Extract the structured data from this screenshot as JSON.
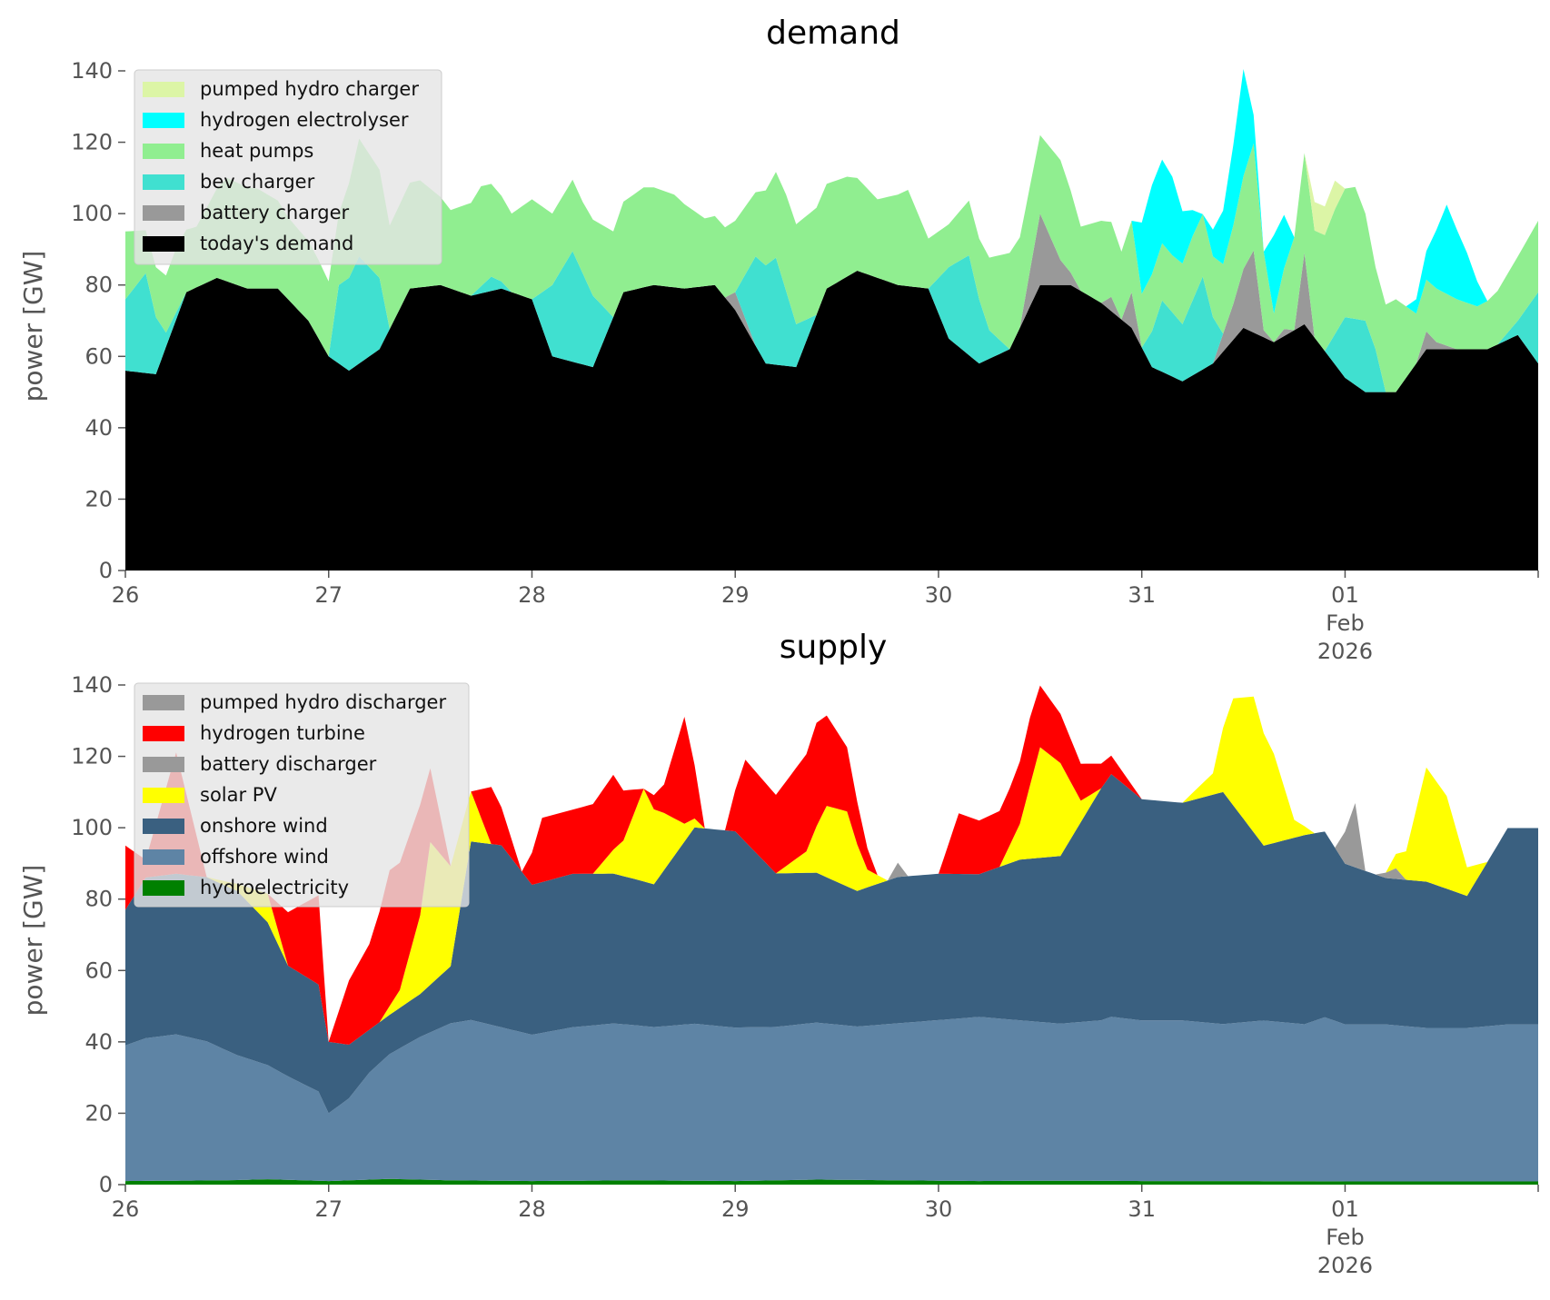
{
  "colors": {
    "pumped_hydro": "#dcf5a6",
    "hydrogen_electrolyser": "#00ffff",
    "heat_pumps": "#90ee90",
    "bev_charger": "#40e0d0",
    "battery": "#999999",
    "todays_demand": "#000000",
    "hydrogen_turbine": "#ff0000",
    "solar_pv": "#ffff00",
    "onshore_wind": "#3a6080",
    "offshore_wind": "#5e84a5",
    "hydroelectricity": "#008000"
  },
  "chart_data": [
    {
      "type": "area",
      "stacked": true,
      "title": "demand",
      "ylabel": "power [GW]",
      "ylim": [
        0,
        140
      ],
      "yticks": [
        "0",
        "20",
        "40",
        "60",
        "80",
        "100",
        "120",
        "140"
      ],
      "x_unit": "days from 2026-01-26 00:00",
      "xlim": [
        0,
        6.95
      ],
      "xticks": [
        {
          "x": 0,
          "lines": [
            "26"
          ]
        },
        {
          "x": 1,
          "lines": [
            "27"
          ]
        },
        {
          "x": 2,
          "lines": [
            "28"
          ]
        },
        {
          "x": 3,
          "lines": [
            "29"
          ]
        },
        {
          "x": 4,
          "lines": [
            "30"
          ]
        },
        {
          "x": 5,
          "lines": [
            "31"
          ]
        },
        {
          "x": 6,
          "lines": [
            "01",
            "Feb",
            "2026"
          ]
        }
      ],
      "legend": {
        "placement": "upper-left",
        "entries": [
          "pumped hydro charger",
          "hydrogen electrolyser",
          "heat pumps",
          "bev charger",
          "battery charger",
          "today's demand"
        ]
      },
      "series": [
        {
          "name": "today's demand",
          "color_key": "todays_demand",
          "x": [
            0,
            0.15,
            0.3,
            0.45,
            0.6,
            0.75,
            0.9,
            1.0,
            1.1,
            1.25,
            1.4,
            1.55,
            1.7,
            1.85,
            2.0,
            2.1,
            2.3,
            2.45,
            2.6,
            2.75,
            2.9,
            3.0,
            3.15,
            3.3,
            3.45,
            3.6,
            3.8,
            3.95,
            4.05,
            4.2,
            4.35,
            4.5,
            4.65,
            4.8,
            4.95,
            5.05,
            5.2,
            5.35,
            5.5,
            5.65,
            5.8,
            6.0,
            6.1,
            6.25,
            6.4,
            6.55,
            6.7,
            6.85,
            6.95
          ],
          "y": [
            56,
            55,
            78,
            82,
            79,
            79,
            70,
            60,
            56,
            62,
            79,
            80,
            77,
            79,
            76,
            60,
            57,
            78,
            80,
            79,
            80,
            73,
            58,
            57,
            79,
            84,
            80,
            79,
            65,
            58,
            62,
            80,
            80,
            75,
            68,
            57,
            53,
            58,
            68,
            64,
            69,
            54,
            50,
            50,
            62,
            62,
            62,
            66,
            58
          ]
        },
        {
          "name": "battery charger",
          "color_key": "battery",
          "x": [
            0,
            0.5,
            1.0,
            1.5,
            2.0,
            2.5,
            2.9,
            2.95,
            3.0,
            3.1,
            3.5,
            4.0,
            4.35,
            4.4,
            4.5,
            4.6,
            4.7,
            4.8,
            4.85,
            4.9,
            4.95,
            5.0,
            5.05,
            5.2,
            5.35,
            5.45,
            5.55,
            5.6,
            5.65,
            5.7,
            5.75,
            5.8,
            5.85,
            5.9,
            6.0,
            6.2,
            6.35,
            6.4,
            6.45,
            6.55,
            6.6,
            6.7,
            6.95
          ],
          "y": [
            0,
            0,
            0,
            0,
            0,
            0,
            0,
            0,
            5,
            0,
            0,
            0,
            0,
            0,
            20,
            7,
            0,
            0,
            4,
            0,
            10,
            0,
            0,
            0,
            0,
            10,
            23,
            2,
            0,
            2,
            0,
            20,
            0,
            0,
            0,
            0,
            0,
            5,
            2,
            0,
            0,
            0,
            0
          ]
        },
        {
          "name": "bev charger",
          "color_key": "bev_charger",
          "x": [
            0,
            0.1,
            0.2,
            0.3,
            0.45,
            1.0,
            1.05,
            1.15,
            1.25,
            1.3,
            1.4,
            1.7,
            1.8,
            1.9,
            2.0,
            2.1,
            2.2,
            2.3,
            2.4,
            2.5,
            2.9,
            3.0,
            3.1,
            3.2,
            3.3,
            3.4,
            3.5,
            3.9,
            3.95,
            4.05,
            4.15,
            4.25,
            4.35,
            4.45,
            4.55,
            4.8,
            4.9,
            5.0,
            5.1,
            5.2,
            5.3,
            5.4,
            5.5,
            5.6,
            5.9,
            6.0,
            6.1,
            6.15,
            6.2,
            6.25,
            6.35,
            6.45,
            6.55,
            6.65,
            6.75,
            6.85,
            6.95
          ],
          "y": [
            20,
            28,
            4,
            0,
            0,
            0,
            22,
            30,
            20,
            0,
            0,
            0,
            4,
            0,
            0,
            20,
            31,
            20,
            0,
            0,
            0,
            0,
            25,
            30,
            12,
            0,
            0,
            0,
            0,
            20,
            28,
            8,
            0,
            0,
            0,
            0,
            0,
            0,
            20,
            16,
            26,
            0,
            0,
            0,
            0,
            17,
            20,
            12,
            0,
            0,
            0,
            0,
            0,
            0,
            0,
            4,
            20
          ]
        },
        {
          "name": "heat pumps",
          "color_key": "heat_pumps",
          "x": [
            0,
            0.1,
            0.25,
            0.35,
            0.5,
            0.65,
            0.8,
            0.95,
            1.05,
            1.15,
            1.3,
            1.45,
            1.6,
            1.75,
            1.9,
            2.0,
            2.1,
            2.25,
            2.4,
            2.55,
            2.7,
            2.85,
            3.0,
            3.1,
            3.25,
            3.4,
            3.55,
            3.7,
            3.85,
            3.95,
            4.05,
            4.2,
            4.35,
            4.5,
            4.6,
            4.7,
            4.8,
            4.9,
            4.95,
            5.0,
            5.05,
            5.15,
            5.25,
            5.35,
            5.45,
            5.55,
            5.6,
            5.65,
            5.75,
            5.85,
            5.95,
            6.05,
            6.15,
            6.25,
            6.35,
            6.45,
            6.55,
            6.65,
            6.75,
            6.85,
            6.95
          ],
          "y": [
            19,
            12,
            18,
            17,
            29,
            28,
            23,
            22,
            20,
            33,
            29,
            30,
            22,
            28,
            22,
            28,
            20,
            20,
            24,
            28,
            26,
            19,
            20,
            18,
            27,
            30,
            28,
            22,
            27,
            14,
            12,
            17,
            27,
            22,
            28,
            18,
            23,
            19,
            20,
            15,
            16,
            16,
            18,
            17,
            22,
            30,
            22,
            8,
            26,
            30,
            35,
            37,
            23,
            26,
            14,
            15,
            14,
            12,
            15,
            18,
            20
          ]
        },
        {
          "name": "hydrogen electrolyser",
          "color_key": "hydrogen_electrolyser",
          "x": [
            0,
            4.95,
            5.0,
            5.05,
            5.15,
            5.3,
            5.4,
            5.5,
            5.55,
            5.6,
            5.65,
            5.7,
            5.75,
            5.8,
            6.0,
            6.2,
            6.3,
            6.4,
            6.5,
            6.6,
            6.7,
            6.8,
            6.95
          ],
          "y": [
            0,
            0,
            20,
            25,
            22,
            0,
            15,
            30,
            8,
            0,
            22,
            15,
            0,
            0,
            0,
            0,
            0,
            8,
            25,
            14,
            0,
            0,
            0
          ]
        },
        {
          "name": "pumped hydro charger",
          "color_key": "pumped_hydro",
          "x": [
            0,
            5.6,
            5.65,
            5.7,
            5.8,
            5.85,
            5.9,
            5.95,
            6.0,
            6.05,
            6.95
          ],
          "y": [
            0,
            0,
            0,
            0,
            0,
            8,
            8,
            8,
            0,
            0,
            0
          ]
        }
      ]
    },
    {
      "type": "area",
      "stacked": true,
      "title": "supply",
      "ylabel": "power [GW]",
      "ylim": [
        0,
        140
      ],
      "yticks": [
        "0",
        "20",
        "40",
        "60",
        "80",
        "100",
        "120",
        "140"
      ],
      "x_unit": "days from 2026-01-26 00:00",
      "xlim": [
        0,
        6.95
      ],
      "xticks": [
        {
          "x": 0,
          "lines": [
            "26"
          ]
        },
        {
          "x": 1,
          "lines": [
            "27"
          ]
        },
        {
          "x": 2,
          "lines": [
            "28"
          ]
        },
        {
          "x": 3,
          "lines": [
            "29"
          ]
        },
        {
          "x": 4,
          "lines": [
            "30"
          ]
        },
        {
          "x": 5,
          "lines": [
            "31"
          ]
        },
        {
          "x": 6,
          "lines": [
            "01",
            "Feb",
            "2026"
          ]
        }
      ],
      "legend": {
        "placement": "upper-left",
        "entries": [
          "pumped hydro discharger",
          "hydrogen turbine",
          "battery discharger",
          "solar PV",
          "onshore wind",
          "offshore wind",
          "hydroelectricity"
        ]
      },
      "series": [
        {
          "name": "hydroelectricity",
          "color_key": "hydroelectricity",
          "x": [
            0,
            0.5,
            0.7,
            1.0,
            1.3,
            1.6,
            2.0,
            2.5,
            3.0,
            3.4,
            3.8,
            4.2,
            4.6,
            5.0,
            5.5,
            6.0,
            6.5,
            6.95
          ],
          "y": [
            1,
            1.2,
            1.5,
            1,
            1.6,
            1.2,
            1.0,
            1.2,
            1.0,
            1.4,
            1.2,
            1.0,
            1.1,
            1.0,
            1.0,
            0.9,
            0.9,
            0.9
          ]
        },
        {
          "name": "offshore wind",
          "color_key": "offshore_wind",
          "x": [
            0,
            0.1,
            0.25,
            0.4,
            0.55,
            0.7,
            0.8,
            0.95,
            1.0,
            1.1,
            1.2,
            1.3,
            1.45,
            1.6,
            1.7,
            1.85,
            2.0,
            2.2,
            2.4,
            2.6,
            2.8,
            3.0,
            3.2,
            3.4,
            3.6,
            3.8,
            4.0,
            4.2,
            4.4,
            4.6,
            4.8,
            4.85,
            5.0,
            5.2,
            5.4,
            5.6,
            5.8,
            5.9,
            6.0,
            6.2,
            6.4,
            6.6,
            6.8,
            6.95
          ],
          "y": [
            38,
            40,
            41,
            39,
            35,
            32,
            29,
            25,
            19,
            23,
            30,
            35,
            40,
            44,
            45,
            43,
            41,
            43,
            44,
            43,
            44,
            43,
            43,
            44,
            43,
            44,
            45,
            46,
            45,
            44,
            45,
            46,
            45,
            45,
            44,
            45,
            44,
            46,
            44,
            44,
            43,
            43,
            44,
            44
          ]
        },
        {
          "name": "onshore wind",
          "color_key": "onshore_wind",
          "x": [
            0,
            0.1,
            0.25,
            0.4,
            0.55,
            0.7,
            0.8,
            0.95,
            1.0,
            1.1,
            1.2,
            1.3,
            1.45,
            1.6,
            1.7,
            1.85,
            2.0,
            2.2,
            2.4,
            2.6,
            2.8,
            3.0,
            3.2,
            3.4,
            3.6,
            3.8,
            4.0,
            4.2,
            4.4,
            4.6,
            4.8,
            4.85,
            5.0,
            5.2,
            5.4,
            5.6,
            5.8,
            5.9,
            6.0,
            6.2,
            6.4,
            6.6,
            6.8,
            6.95
          ],
          "y": [
            38,
            45,
            45,
            46,
            46,
            40,
            31,
            30,
            20,
            15,
            12,
            11,
            12,
            16,
            50,
            51,
            42,
            43,
            42,
            40,
            55,
            55,
            43,
            42,
            38,
            41,
            41,
            40,
            45,
            47,
            65,
            68,
            62,
            61,
            65,
            49,
            53,
            52,
            45,
            41,
            41,
            37,
            55,
            55
          ]
        },
        {
          "name": "battery discharger",
          "color_key": "battery",
          "x": [
            0,
            3.75,
            3.8,
            3.85,
            5.9,
            5.95,
            6.05,
            6.1,
            6.15,
            6.25,
            6.3,
            6.95
          ],
          "y": [
            0,
            0,
            4,
            0,
            0,
            0,
            18,
            0,
            0,
            3,
            0,
            0
          ]
        },
        {
          "name": "solar PV",
          "color_key": "solar_pv",
          "x": [
            0,
            0.4,
            0.55,
            0.7,
            0.8,
            1.25,
            1.35,
            1.45,
            1.5,
            1.6,
            1.7,
            1.8,
            2.3,
            2.45,
            2.55,
            2.65,
            2.75,
            2.85,
            3.2,
            3.35,
            3.45,
            3.55,
            3.65,
            3.75,
            4.3,
            4.4,
            4.5,
            4.6,
            4.7,
            4.8,
            5.2,
            5.35,
            5.45,
            5.55,
            5.65,
            5.75,
            5.85,
            6.2,
            6.3,
            6.4,
            6.5,
            6.6,
            6.7,
            6.8,
            6.95
          ],
          "y": [
            0,
            0,
            2,
            8,
            0,
            0,
            5,
            22,
            40,
            28,
            14,
            0,
            0,
            10,
            26,
            16,
            5,
            0,
            0,
            6,
            20,
            21,
            5,
            0,
            0,
            10,
            31,
            26,
            6,
            0,
            0,
            6,
            30,
            38,
            25,
            5,
            0,
            0,
            8,
            32,
            26,
            8,
            0,
            0,
            0
          ]
        },
        {
          "name": "hydrogen turbine",
          "color_key": "hydrogen_turbine",
          "x": [
            0,
            0.1,
            0.25,
            0.4,
            0.55,
            0.7,
            0.8,
            0.95,
            1.0,
            1.1,
            1.2,
            1.3,
            1.45,
            1.6,
            1.7,
            1.8,
            1.95,
            2.05,
            2.2,
            2.4,
            2.55,
            2.65,
            2.75,
            2.85,
            2.95,
            3.05,
            3.2,
            3.4,
            3.55,
            3.7,
            3.85,
            4.0,
            4.1,
            4.2,
            4.35,
            4.45,
            5.0,
            6.95
          ],
          "y": [
            18,
            5,
            34,
            0,
            0,
            0,
            15,
            25,
            0,
            18,
            24,
            38,
            31,
            0,
            0,
            16,
            0,
            18,
            18,
            21,
            0,
            8,
            30,
            0,
            0,
            23,
            22,
            29,
            18,
            0,
            0,
            0,
            17,
            15,
            16,
            19,
            0,
            0
          ]
        }
      ]
    }
  ]
}
